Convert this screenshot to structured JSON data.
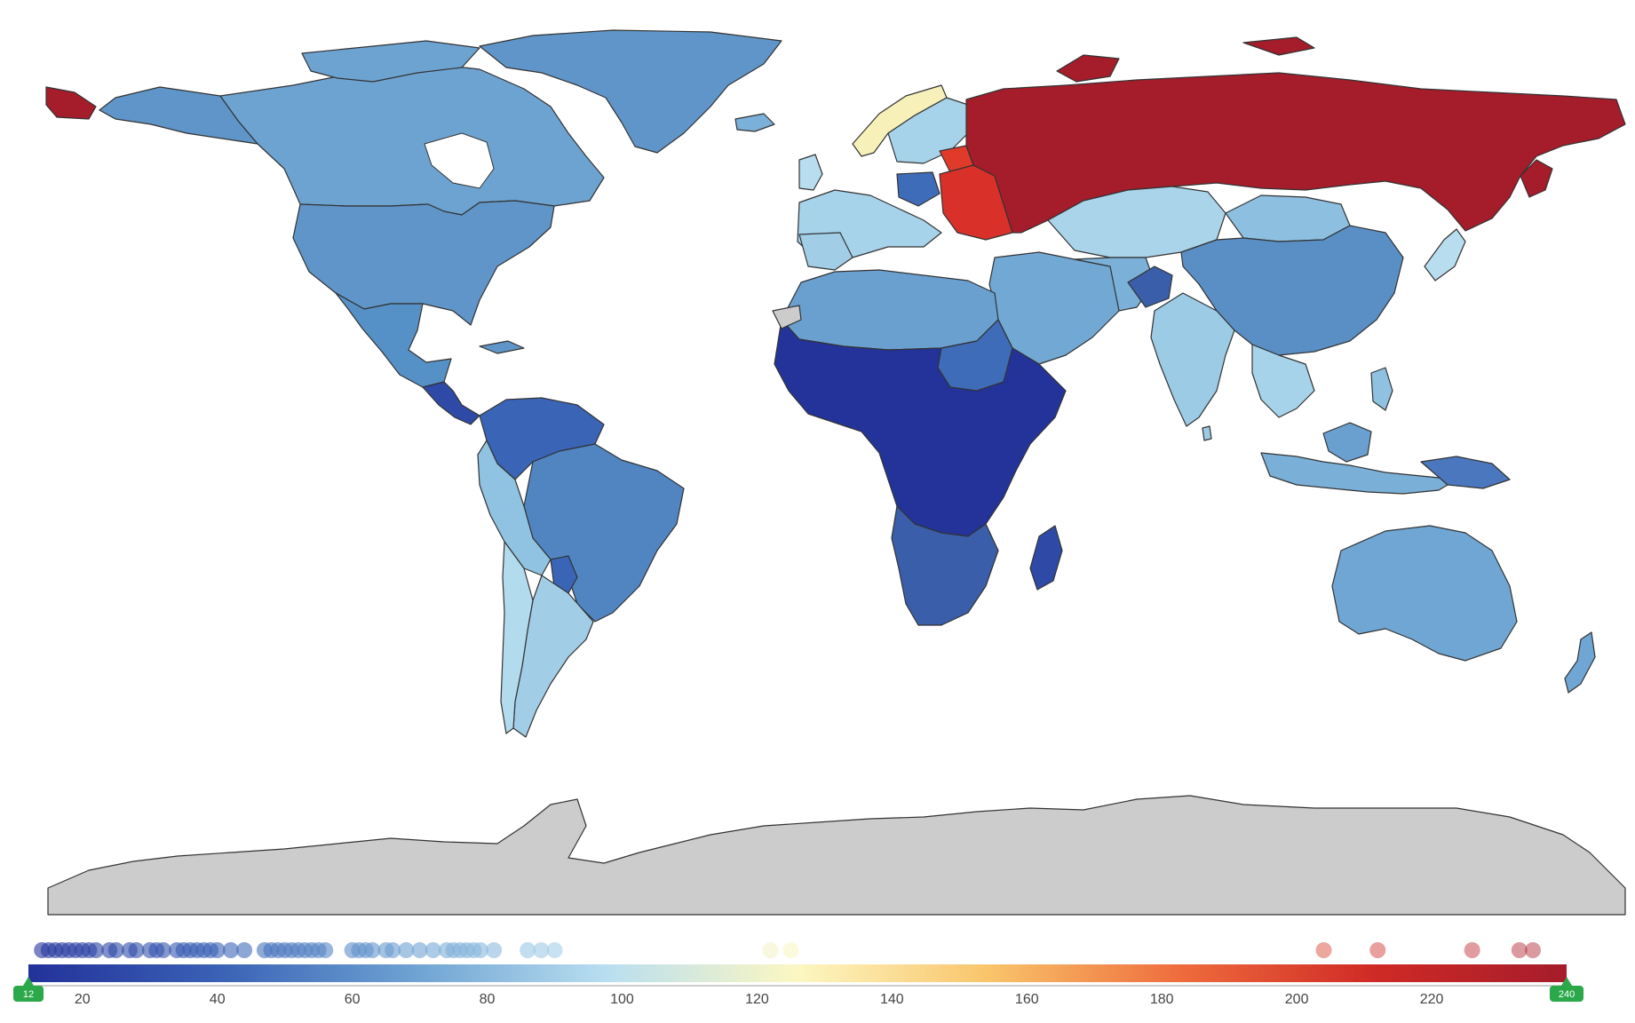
{
  "map": {
    "colors": {
      "ocean": "#ffffff",
      "no_data": "#cccccc",
      "border": "#333333"
    }
  },
  "legend": {
    "min": 12,
    "max": 240,
    "ticks": [
      "20",
      "40",
      "60",
      "80",
      "100",
      "120",
      "140",
      "160",
      "180",
      "200",
      "220"
    ],
    "tick_values": [
      20,
      40,
      60,
      80,
      100,
      120,
      140,
      160,
      180,
      200,
      220
    ],
    "min_handle": "12",
    "max_handle": "240",
    "handle_color": "#2aa84a",
    "colorscale": [
      "#23319a",
      "#3a62b6",
      "#6ea2d2",
      "#b8def0",
      "#fcf7c2",
      "#f9c46a",
      "#ee6b3c",
      "#cf2a25",
      "#a51c2b"
    ],
    "dots": [
      14,
      15,
      16,
      17,
      18,
      19,
      20,
      21,
      22,
      24,
      25,
      27,
      28,
      30,
      31,
      32,
      34,
      35,
      36,
      37,
      38,
      39,
      40,
      42,
      44,
      47,
      48,
      49,
      50,
      51,
      52,
      53,
      54,
      55,
      56,
      60,
      61,
      62,
      63,
      65,
      66,
      68,
      70,
      72,
      74,
      75,
      76,
      77,
      78,
      79,
      81,
      86,
      88,
      90,
      122,
      125,
      204,
      212,
      226,
      233,
      235
    ]
  },
  "chart_data": {
    "type": "choropleth",
    "value_range": [
      12,
      240
    ],
    "regions": [
      {
        "name": "Russia",
        "value": 235
      },
      {
        "name": "Belarus",
        "value": 212
      },
      {
        "name": "Ukraine",
        "value": 212
      },
      {
        "name": "Baltic states",
        "value": 204
      },
      {
        "name": "Norway",
        "value": 122
      },
      {
        "name": "Slovenia",
        "value": 125
      },
      {
        "name": "Canada",
        "value": 58
      },
      {
        "name": "Greenland",
        "value": 55
      },
      {
        "name": "United States",
        "value": 52
      },
      {
        "name": "Mexico",
        "value": 48
      },
      {
        "name": "Central America",
        "value": 28
      },
      {
        "name": "Brazil",
        "value": 48
      },
      {
        "name": "Argentina",
        "value": 78
      },
      {
        "name": "Chile",
        "value": 80
      },
      {
        "name": "Colombia / Venezuela",
        "value": 38
      },
      {
        "name": "Peru / Bolivia",
        "value": 70
      },
      {
        "name": "West Europe",
        "value": 78
      },
      {
        "name": "North Africa",
        "value": 60
      },
      {
        "name": "Sub-Saharan Africa",
        "value": 18
      },
      {
        "name": "Southern Africa",
        "value": 30
      },
      {
        "name": "Madagascar",
        "value": 22
      },
      {
        "name": "Middle East",
        "value": 55
      },
      {
        "name": "Kazakhstan",
        "value": 86
      },
      {
        "name": "China",
        "value": 50
      },
      {
        "name": "India",
        "value": 76
      },
      {
        "name": "Southeast Asia",
        "value": 62
      },
      {
        "name": "Indonesia",
        "value": 55
      },
      {
        "name": "Japan",
        "value": 88
      },
      {
        "name": "Australia",
        "value": 68
      },
      {
        "name": "New Zealand",
        "value": 72
      },
      {
        "name": "Papua New Guinea",
        "value": 40
      },
      {
        "name": "Afghanistan",
        "value": 38
      },
      {
        "name": "Antarctica",
        "value": null
      }
    ]
  }
}
